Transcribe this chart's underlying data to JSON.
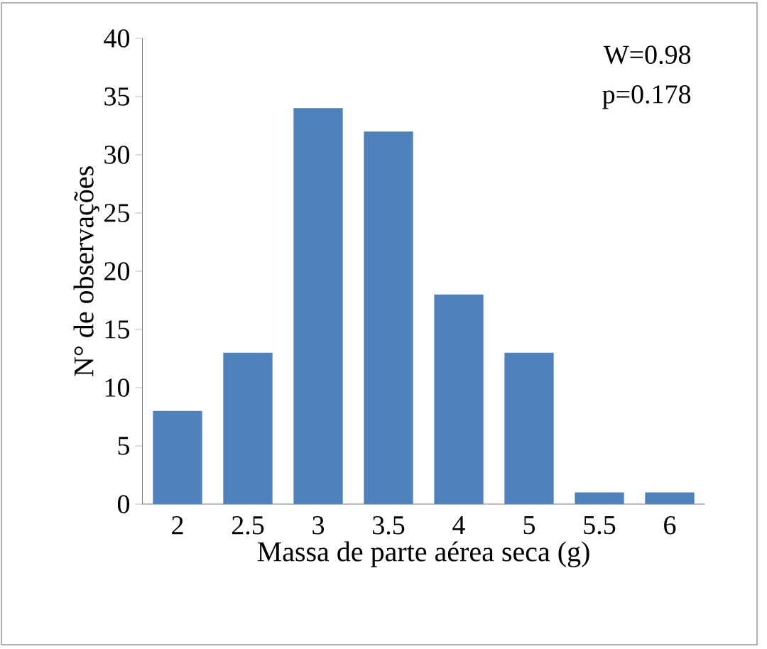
{
  "chart_data": {
    "type": "bar",
    "categories": [
      "2",
      "2.5",
      "3",
      "3.5",
      "4",
      "5",
      "5.5",
      "6"
    ],
    "values": [
      8,
      13,
      34,
      32,
      18,
      13,
      1,
      1
    ],
    "color": "#4f81bd",
    "ylim": [
      0,
      40
    ],
    "yticks": [
      0,
      5,
      10,
      15,
      20,
      25,
      30,
      35,
      40
    ],
    "xlabel": "Massa de parte aérea seca (g)",
    "ylabel": "N° de observações",
    "annotations": [
      "W=0.98",
      "p=0.178"
    ]
  }
}
